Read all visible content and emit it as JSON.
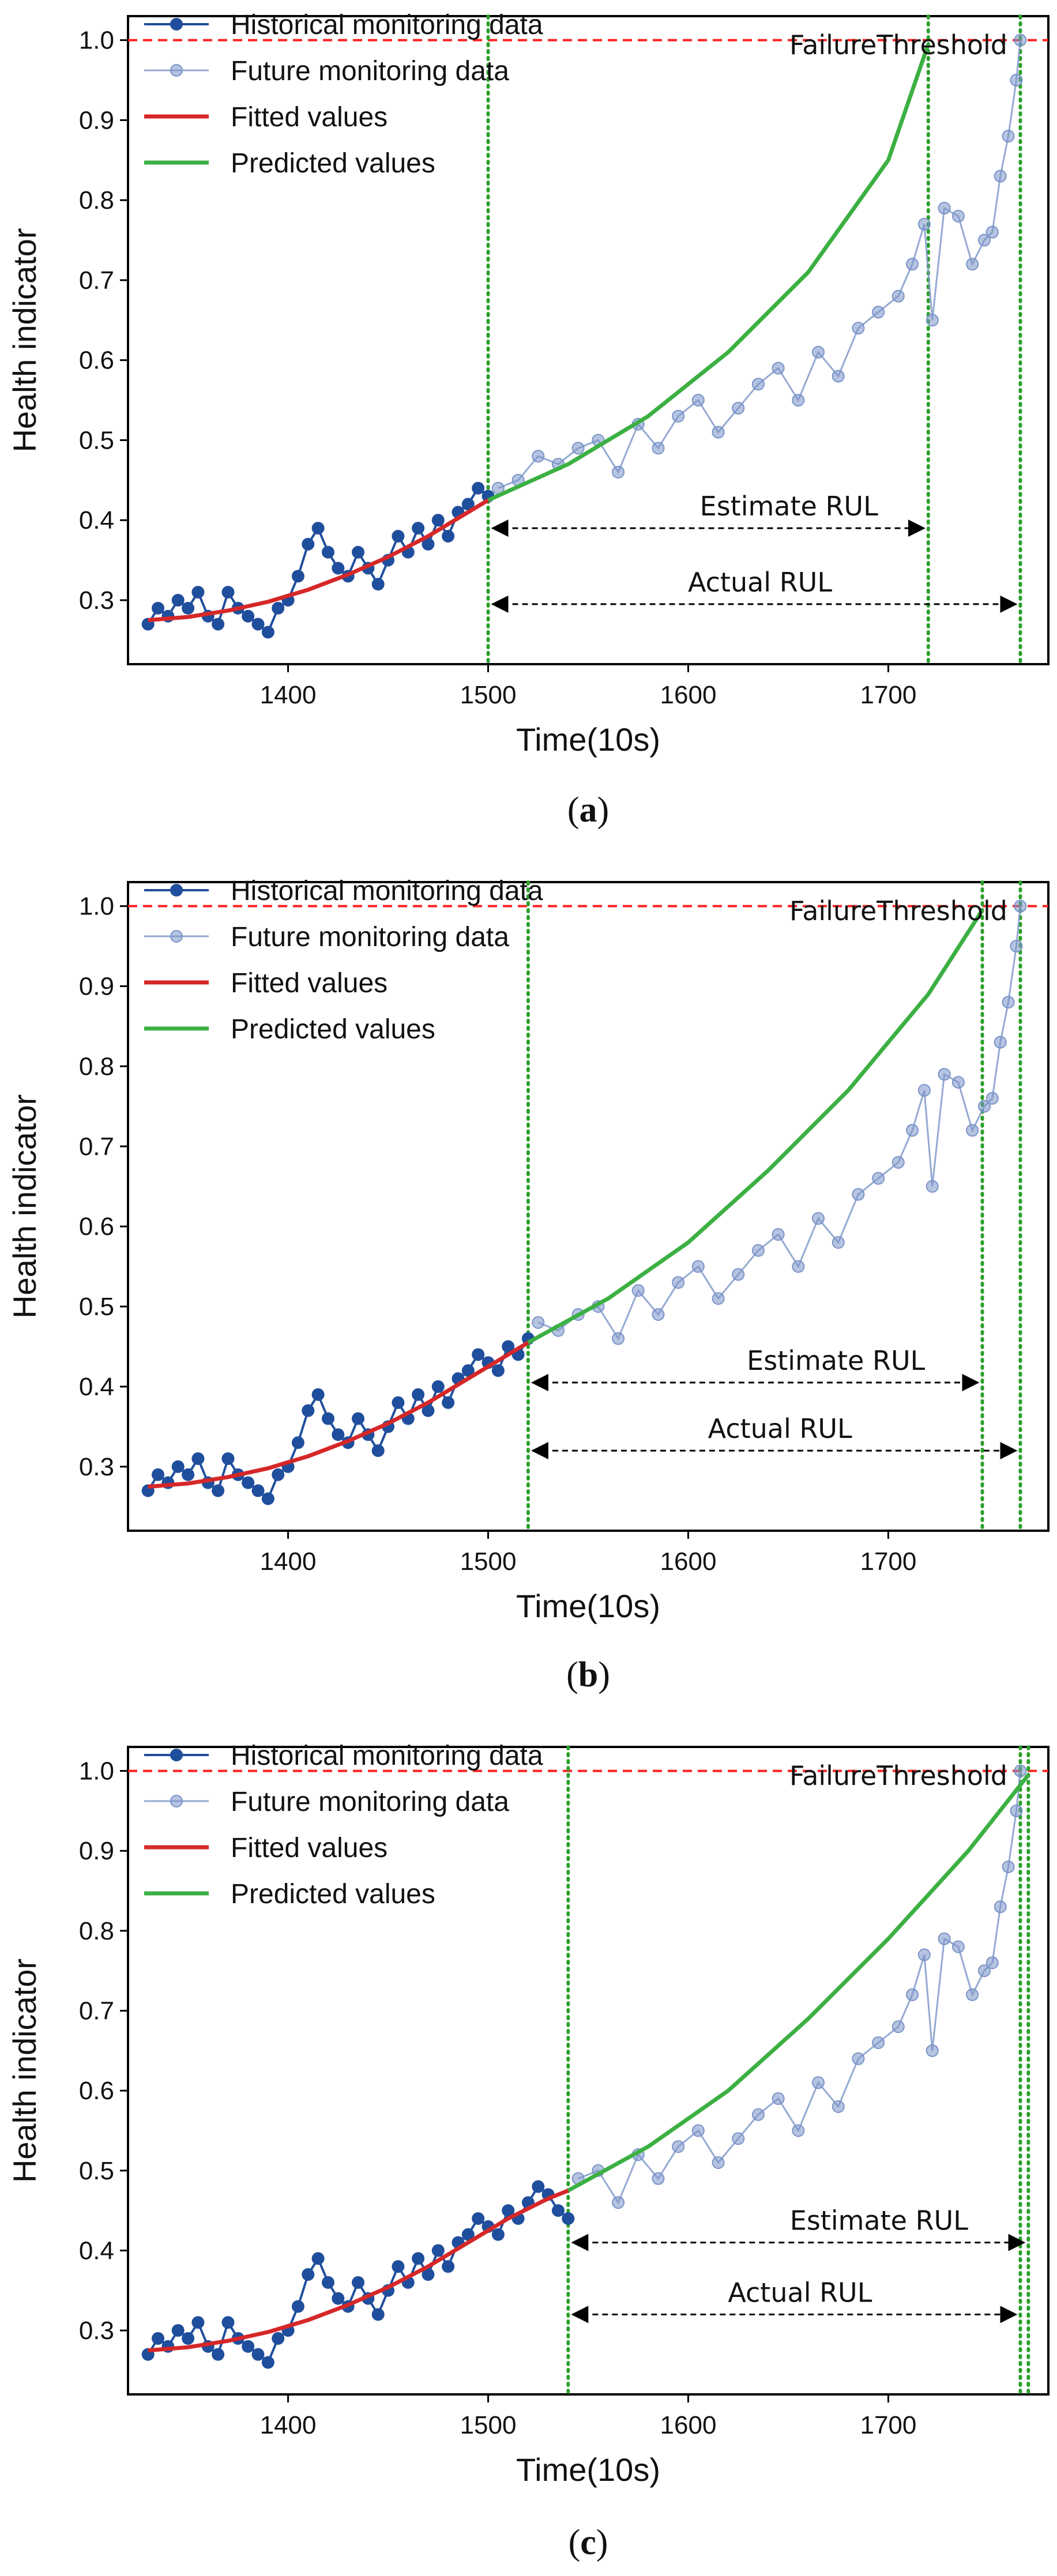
{
  "chart_data": [
    {
      "type": "line",
      "panel": "a",
      "caption": "a",
      "xlabel": "Time(10s)",
      "ylabel": "Health indicator",
      "xlim": [
        1320,
        1780
      ],
      "ylim": [
        0.22,
        1.03
      ],
      "xticks": [
        1400,
        1500,
        1600,
        1700
      ],
      "yticks": [
        0.3,
        0.4,
        0.5,
        0.6,
        0.7,
        0.8,
        0.9,
        1.0
      ],
      "xtick_labels": [
        "1400",
        "1500",
        "1600",
        "1700"
      ],
      "ytick_labels": [
        "0.3",
        "0.4",
        "0.5",
        "0.6",
        "0.7",
        "0.8",
        "0.9",
        "1.0"
      ],
      "threshold": 1.0,
      "threshold_label": "FailureThreshold",
      "legend": [
        "Historical monitoring data",
        "Future monitoring data",
        "Fitted values",
        "Predicted values"
      ],
      "legend_position": "top-left",
      "start_time": 1500,
      "predicted_failure_time": 1720,
      "actual_failure_time": 1766,
      "estimate_label": "Estimate RUL",
      "actual_label": "Actual RUL",
      "series": [
        {
          "name": "Historical monitoring data",
          "x": [
            1330,
            1335,
            1340,
            1345,
            1350,
            1355,
            1360,
            1365,
            1370,
            1375,
            1380,
            1385,
            1390,
            1395,
            1400,
            1405,
            1410,
            1415,
            1420,
            1425,
            1430,
            1435,
            1440,
            1445,
            1450,
            1455,
            1460,
            1465,
            1470,
            1475,
            1480,
            1485,
            1490,
            1495,
            1500
          ],
          "values": [
            0.27,
            0.29,
            0.28,
            0.3,
            0.29,
            0.31,
            0.28,
            0.27,
            0.31,
            0.29,
            0.28,
            0.27,
            0.26,
            0.29,
            0.3,
            0.33,
            0.37,
            0.39,
            0.36,
            0.34,
            0.33,
            0.36,
            0.34,
            0.32,
            0.35,
            0.38,
            0.36,
            0.39,
            0.37,
            0.4,
            0.38,
            0.41,
            0.42,
            0.44,
            0.43
          ]
        },
        {
          "name": "Future monitoring data",
          "x": [
            1505,
            1515,
            1525,
            1535,
            1545,
            1555,
            1565,
            1575,
            1585,
            1595,
            1605,
            1615,
            1625,
            1635,
            1645,
            1655,
            1665,
            1675,
            1685,
            1695,
            1705,
            1712,
            1718,
            1722,
            1728,
            1735,
            1742,
            1748,
            1752,
            1756,
            1760,
            1764,
            1766
          ],
          "values": [
            0.44,
            0.45,
            0.48,
            0.47,
            0.49,
            0.5,
            0.46,
            0.52,
            0.49,
            0.53,
            0.55,
            0.51,
            0.54,
            0.57,
            0.59,
            0.55,
            0.61,
            0.58,
            0.64,
            0.66,
            0.68,
            0.72,
            0.77,
            0.65,
            0.79,
            0.78,
            0.72,
            0.75,
            0.76,
            0.83,
            0.88,
            0.95,
            1.0
          ]
        },
        {
          "name": "Fitted values",
          "x": [
            1330,
            1350,
            1370,
            1390,
            1410,
            1430,
            1450,
            1470,
            1490,
            1500
          ],
          "values": [
            0.275,
            0.279,
            0.287,
            0.298,
            0.313,
            0.332,
            0.354,
            0.38,
            0.41,
            0.425
          ]
        },
        {
          "name": "Predicted values",
          "x": [
            1500,
            1540,
            1580,
            1620,
            1660,
            1700,
            1720
          ],
          "values": [
            0.425,
            0.47,
            0.53,
            0.61,
            0.71,
            0.85,
            0.995
          ]
        }
      ]
    },
    {
      "type": "line",
      "panel": "b",
      "caption": "b",
      "xlabel": "Time(10s)",
      "ylabel": "Health indicator",
      "xlim": [
        1320,
        1780
      ],
      "ylim": [
        0.22,
        1.03
      ],
      "xticks": [
        1400,
        1500,
        1600,
        1700
      ],
      "yticks": [
        0.3,
        0.4,
        0.5,
        0.6,
        0.7,
        0.8,
        0.9,
        1.0
      ],
      "xtick_labels": [
        "1400",
        "1500",
        "1600",
        "1700"
      ],
      "ytick_labels": [
        "0.3",
        "0.4",
        "0.5",
        "0.6",
        "0.7",
        "0.8",
        "0.9",
        "1.0"
      ],
      "threshold": 1.0,
      "threshold_label": "FailureThreshold",
      "legend": [
        "Historical monitoring data",
        "Future monitoring data",
        "Fitted values",
        "Predicted values"
      ],
      "legend_position": "top-left",
      "start_time": 1520,
      "predicted_failure_time": 1747,
      "actual_failure_time": 1766,
      "estimate_label": "Estimate RUL",
      "actual_label": "Actual RUL",
      "series": [
        {
          "name": "Historical monitoring data",
          "x": [
            1330,
            1335,
            1340,
            1345,
            1350,
            1355,
            1360,
            1365,
            1370,
            1375,
            1380,
            1385,
            1390,
            1395,
            1400,
            1405,
            1410,
            1415,
            1420,
            1425,
            1430,
            1435,
            1440,
            1445,
            1450,
            1455,
            1460,
            1465,
            1470,
            1475,
            1480,
            1485,
            1490,
            1495,
            1500,
            1505,
            1510,
            1515,
            1520
          ],
          "values": [
            0.27,
            0.29,
            0.28,
            0.3,
            0.29,
            0.31,
            0.28,
            0.27,
            0.31,
            0.29,
            0.28,
            0.27,
            0.26,
            0.29,
            0.3,
            0.33,
            0.37,
            0.39,
            0.36,
            0.34,
            0.33,
            0.36,
            0.34,
            0.32,
            0.35,
            0.38,
            0.36,
            0.39,
            0.37,
            0.4,
            0.38,
            0.41,
            0.42,
            0.44,
            0.43,
            0.42,
            0.45,
            0.44,
            0.46
          ]
        },
        {
          "name": "Future monitoring data",
          "x": [
            1525,
            1535,
            1545,
            1555,
            1565,
            1575,
            1585,
            1595,
            1605,
            1615,
            1625,
            1635,
            1645,
            1655,
            1665,
            1675,
            1685,
            1695,
            1705,
            1712,
            1718,
            1722,
            1728,
            1735,
            1742,
            1748,
            1752,
            1756,
            1760,
            1764,
            1766
          ],
          "values": [
            0.48,
            0.47,
            0.49,
            0.5,
            0.46,
            0.52,
            0.49,
            0.53,
            0.55,
            0.51,
            0.54,
            0.57,
            0.59,
            0.55,
            0.61,
            0.58,
            0.64,
            0.66,
            0.68,
            0.72,
            0.77,
            0.65,
            0.79,
            0.78,
            0.72,
            0.75,
            0.76,
            0.83,
            0.88,
            0.95,
            1.0
          ]
        },
        {
          "name": "Fitted values",
          "x": [
            1330,
            1350,
            1370,
            1390,
            1410,
            1430,
            1450,
            1470,
            1490,
            1510,
            1520
          ],
          "values": [
            0.275,
            0.279,
            0.287,
            0.298,
            0.313,
            0.332,
            0.354,
            0.38,
            0.41,
            0.44,
            0.455
          ]
        },
        {
          "name": "Predicted values",
          "x": [
            1520,
            1560,
            1600,
            1640,
            1680,
            1720,
            1747
          ],
          "values": [
            0.455,
            0.51,
            0.58,
            0.67,
            0.77,
            0.89,
            0.995
          ]
        }
      ]
    },
    {
      "type": "line",
      "panel": "c",
      "caption": "c",
      "xlabel": "Time(10s)",
      "ylabel": "Health indicator",
      "xlim": [
        1320,
        1780
      ],
      "ylim": [
        0.22,
        1.03
      ],
      "xticks": [
        1400,
        1500,
        1600,
        1700
      ],
      "yticks": [
        0.3,
        0.4,
        0.5,
        0.6,
        0.7,
        0.8,
        0.9,
        1.0
      ],
      "xtick_labels": [
        "1400",
        "1500",
        "1600",
        "1700"
      ],
      "ytick_labels": [
        "0.3",
        "0.4",
        "0.5",
        "0.6",
        "0.7",
        "0.8",
        "0.9",
        "1.0"
      ],
      "threshold": 1.0,
      "threshold_label": "FailureThreshold",
      "legend": [
        "Historical monitoring data",
        "Future monitoring data",
        "Fitted values",
        "Predicted values"
      ],
      "legend_position": "top-left",
      "start_time": 1540,
      "predicted_failure_time": 1770,
      "actual_failure_time": 1766,
      "estimate_label": "Estimate RUL",
      "actual_label": "Actual RUL",
      "series": [
        {
          "name": "Historical monitoring data",
          "x": [
            1330,
            1335,
            1340,
            1345,
            1350,
            1355,
            1360,
            1365,
            1370,
            1375,
            1380,
            1385,
            1390,
            1395,
            1400,
            1405,
            1410,
            1415,
            1420,
            1425,
            1430,
            1435,
            1440,
            1445,
            1450,
            1455,
            1460,
            1465,
            1470,
            1475,
            1480,
            1485,
            1490,
            1495,
            1500,
            1505,
            1510,
            1515,
            1520,
            1525,
            1530,
            1535,
            1540
          ],
          "values": [
            0.27,
            0.29,
            0.28,
            0.3,
            0.29,
            0.31,
            0.28,
            0.27,
            0.31,
            0.29,
            0.28,
            0.27,
            0.26,
            0.29,
            0.3,
            0.33,
            0.37,
            0.39,
            0.36,
            0.34,
            0.33,
            0.36,
            0.34,
            0.32,
            0.35,
            0.38,
            0.36,
            0.39,
            0.37,
            0.4,
            0.38,
            0.41,
            0.42,
            0.44,
            0.43,
            0.42,
            0.45,
            0.44,
            0.46,
            0.48,
            0.47,
            0.45,
            0.44
          ]
        },
        {
          "name": "Future monitoring data",
          "x": [
            1545,
            1555,
            1565,
            1575,
            1585,
            1595,
            1605,
            1615,
            1625,
            1635,
            1645,
            1655,
            1665,
            1675,
            1685,
            1695,
            1705,
            1712,
            1718,
            1722,
            1728,
            1735,
            1742,
            1748,
            1752,
            1756,
            1760,
            1764,
            1766
          ],
          "values": [
            0.49,
            0.5,
            0.46,
            0.52,
            0.49,
            0.53,
            0.55,
            0.51,
            0.54,
            0.57,
            0.59,
            0.55,
            0.61,
            0.58,
            0.64,
            0.66,
            0.68,
            0.72,
            0.77,
            0.65,
            0.79,
            0.78,
            0.72,
            0.75,
            0.76,
            0.83,
            0.88,
            0.95,
            1.0
          ]
        },
        {
          "name": "Fitted values",
          "x": [
            1330,
            1350,
            1370,
            1390,
            1410,
            1430,
            1450,
            1470,
            1490,
            1510,
            1530,
            1540
          ],
          "values": [
            0.275,
            0.279,
            0.287,
            0.298,
            0.313,
            0.332,
            0.354,
            0.38,
            0.41,
            0.44,
            0.465,
            0.475
          ]
        },
        {
          "name": "Predicted values",
          "x": [
            1540,
            1580,
            1620,
            1660,
            1700,
            1740,
            1770
          ],
          "values": [
            0.475,
            0.53,
            0.6,
            0.69,
            0.79,
            0.9,
            0.995
          ]
        }
      ]
    }
  ],
  "colors": {
    "historical": "#1f4e9c",
    "future": "#7a94c8",
    "fitted": "#d62728",
    "predicted": "#3cb043",
    "threshold": "#ff2020",
    "vline": "#2ca02c"
  }
}
